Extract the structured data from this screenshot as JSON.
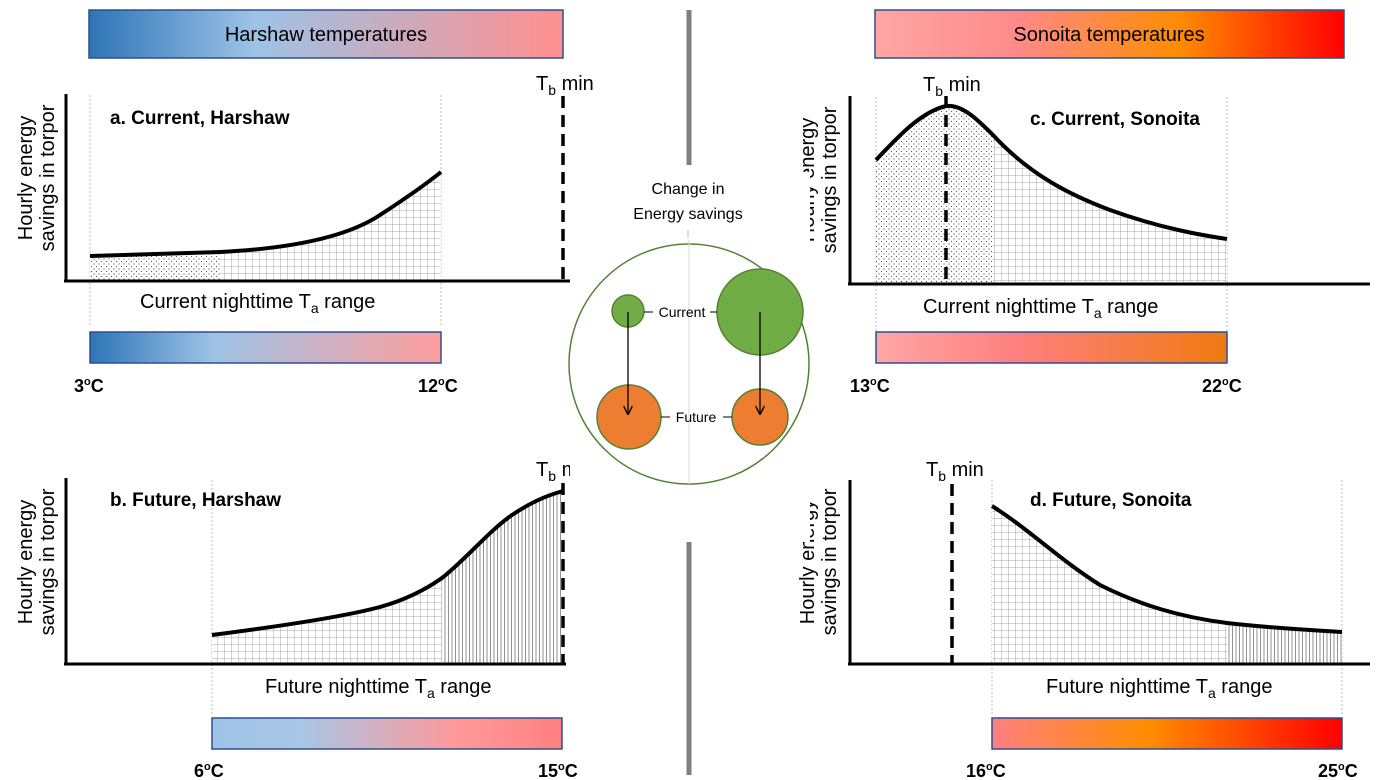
{
  "header": {
    "left_title": "Harshaw temperatures",
    "right_title": "Sonoita temperatures"
  },
  "common": {
    "y_axis_line1": "Hourly energy",
    "y_axis_line2": "savings in torpor",
    "tb_label_T": "T",
    "tb_label_sub": "b",
    "tb_label_rest": " min",
    "xlabel_current_pre": "Current nighttime T",
    "xlabel_future_pre": "Future nighttime T",
    "xlabel_sub": "a",
    "xlabel_post": " range",
    "deg_symbol": "o",
    "unit": "C"
  },
  "panels": {
    "a": {
      "title": "a. Current, Harshaw",
      "range_min": "3",
      "range_max": "12"
    },
    "b": {
      "title": "b. Future, Harshaw",
      "range_min": "6",
      "range_max": "15"
    },
    "c": {
      "title": "c. Current, Sonoita",
      "range_min": "13",
      "range_max": "22"
    },
    "d": {
      "title": "d. Future, Sonoita",
      "range_min": "16",
      "range_max": "25"
    }
  },
  "center": {
    "title_line1": "Change in",
    "title_line2": "Energy savings",
    "current_label": "Current",
    "future_label": "Future"
  },
  "colors": {
    "cold_blue": "#2e75b6",
    "light_blue": "#9dc3e6",
    "pink": "#ff9999",
    "orange": "#ff8c00",
    "red": "#ff0000",
    "green_circle": "#70ad47",
    "orange_circle": "#ed7d31",
    "divider": "#7f7f7f"
  }
}
